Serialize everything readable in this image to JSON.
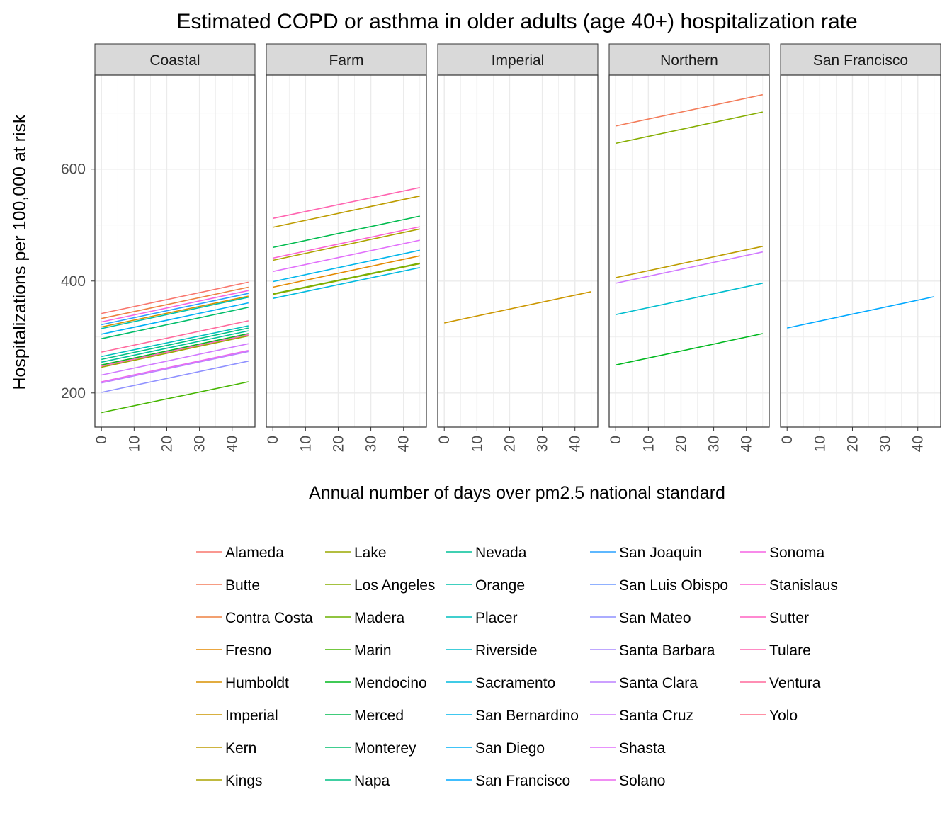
{
  "chart_data": {
    "type": "line",
    "title": "Estimated COPD or asthma in older adults (age 40+) hospitalization rate",
    "xlabel": "Annual number of days over pm2.5 national standard",
    "ylabel": "Hospitalizations per 100,000 at risk",
    "xlim": [
      -2,
      47
    ],
    "ylim": [
      139,
      768
    ],
    "x_ticks": [
      0,
      10,
      20,
      30,
      40
    ],
    "y_ticks": [
      200,
      400,
      600
    ],
    "grid": true,
    "legend_position": "bottom",
    "panels": [
      {
        "name": "Coastal",
        "series": [
          {
            "name": "Alameda",
            "x": [
              0,
              45
            ],
            "y": [
              342,
              398
            ]
          },
          {
            "name": "Contra Costa",
            "x": [
              0,
              45
            ],
            "y": [
              333,
              389
            ]
          },
          {
            "name": "Sonoma",
            "x": [
              0,
              45
            ],
            "y": [
              327,
              383
            ]
          },
          {
            "name": "San Joaquin",
            "x": [
              0,
              45
            ],
            "y": [
              322,
              378
            ]
          },
          {
            "name": "Humboldt",
            "x": [
              0,
              45
            ],
            "y": [
              318,
              373
            ]
          },
          {
            "name": "Orange",
            "x": [
              0,
              45
            ],
            "y": [
              315,
              371
            ]
          },
          {
            "name": "San Diego",
            "x": [
              0,
              45
            ],
            "y": [
              305,
              361
            ]
          },
          {
            "name": "Monterey",
            "x": [
              0,
              45
            ],
            "y": [
              297,
              353
            ]
          },
          {
            "name": "Ventura",
            "x": [
              0,
              45
            ],
            "y": [
              273,
              329
            ]
          },
          {
            "name": "Placer",
            "x": [
              0,
              45
            ],
            "y": [
              265,
              320
            ]
          },
          {
            "name": "Napa",
            "x": [
              0,
              45
            ],
            "y": [
              260,
              316
            ]
          },
          {
            "name": "Nevada",
            "x": [
              0,
              45
            ],
            "y": [
              255,
              311
            ]
          },
          {
            "name": "Mendocino",
            "x": [
              0,
              45
            ],
            "y": [
              250,
              306
            ]
          },
          {
            "name": "Sutter",
            "x": [
              0,
              45
            ],
            "y": [
              248,
              304
            ]
          },
          {
            "name": "Lake",
            "x": [
              0,
              45
            ],
            "y": [
              246,
              302
            ]
          },
          {
            "name": "Santa Cruz",
            "x": [
              0,
              45
            ],
            "y": [
              232,
              288
            ]
          },
          {
            "name": "Solano",
            "x": [
              0,
              45
            ],
            "y": [
              220,
              276
            ]
          },
          {
            "name": "Santa Clara",
            "x": [
              0,
              45
            ],
            "y": [
              218,
              274
            ]
          },
          {
            "name": "San Mateo",
            "x": [
              0,
              45
            ],
            "y": [
              201,
              257
            ]
          },
          {
            "name": "Marin",
            "x": [
              0,
              45
            ],
            "y": [
              165,
              220
            ]
          }
        ]
      },
      {
        "name": "Farm",
        "series": [
          {
            "name": "Tulare",
            "x": [
              0,
              45
            ],
            "y": [
              512,
              567
            ]
          },
          {
            "name": "Kern",
            "x": [
              0,
              45
            ],
            "y": [
              496,
              552
            ]
          },
          {
            "name": "Merced",
            "x": [
              0,
              45
            ],
            "y": [
              460,
              516
            ]
          },
          {
            "name": "Stanislaus",
            "x": [
              0,
              45
            ],
            "y": [
              441,
              497
            ]
          },
          {
            "name": "Kings",
            "x": [
              0,
              45
            ],
            "y": [
              437,
              493
            ]
          },
          {
            "name": "Shasta",
            "x": [
              0,
              45
            ],
            "y": [
              417,
              473
            ]
          },
          {
            "name": "San Bernardino",
            "x": [
              0,
              45
            ],
            "y": [
              399,
              455
            ]
          },
          {
            "name": "Fresno",
            "x": [
              0,
              45
            ],
            "y": [
              389,
              445
            ]
          },
          {
            "name": "Madera",
            "x": [
              0,
              45
            ],
            "y": [
              377,
              432
            ]
          },
          {
            "name": "Los Angeles",
            "x": [
              0,
              45
            ],
            "y": [
              376,
              431
            ]
          },
          {
            "name": "Sacramento",
            "x": [
              0,
              45
            ],
            "y": [
              369,
              424
            ]
          }
        ]
      },
      {
        "name": "Imperial",
        "series": [
          {
            "name": "Imperial",
            "x": [
              0,
              45
            ],
            "y": [
              325,
              381
            ]
          }
        ]
      },
      {
        "name": "Northern",
        "series": [
          {
            "name": "Butte",
            "x": [
              0,
              45
            ],
            "y": [
              677,
              733
            ]
          },
          {
            "name": "Los Angeles",
            "x": [
              0,
              45
            ],
            "y": [
              646,
              702
            ]
          },
          {
            "name": "Kern",
            "x": [
              0,
              45
            ],
            "y": [
              406,
              462
            ]
          },
          {
            "name": "Santa Cruz",
            "x": [
              0,
              45
            ],
            "y": [
              396,
              452
            ]
          },
          {
            "name": "Riverside",
            "x": [
              0,
              45
            ],
            "y": [
              340,
              396
            ]
          },
          {
            "name": "Mendocino",
            "x": [
              0,
              45
            ],
            "y": [
              250,
              306
            ]
          }
        ]
      },
      {
        "name": "San Francisco",
        "series": [
          {
            "name": "San Francisco",
            "x": [
              0,
              45
            ],
            "y": [
              316,
              372
            ]
          }
        ]
      }
    ],
    "legend": {
      "columns": [
        [
          "Alameda",
          "Butte",
          "Contra Costa",
          "Fresno",
          "Humboldt",
          "Imperial",
          "Kern",
          "Kings"
        ],
        [
          "Lake",
          "Los Angeles",
          "Madera",
          "Marin",
          "Mendocino",
          "Merced",
          "Monterey",
          "Napa"
        ],
        [
          "Nevada",
          "Orange",
          "Placer",
          "Riverside",
          "Sacramento",
          "San Bernardino",
          "San Diego",
          "San Francisco"
        ],
        [
          "San Joaquin",
          "San Luis Obispo",
          "San Mateo",
          "Santa Barbara",
          "Santa Clara",
          "Santa Cruz",
          "Shasta",
          "Solano"
        ],
        [
          "Sonoma",
          "Stanislaus",
          "Sutter",
          "Tulare",
          "Ventura",
          "Yolo"
        ]
      ]
    },
    "colors": {
      "Alameda": "#F8766D",
      "Butte": "#F37B59",
      "Contra Costa": "#ED8141",
      "Fresno": "#E38900",
      "Humboldt": "#D89000",
      "Imperial": "#CB9600",
      "Kern": "#BD9C00",
      "Kings": "#ACA300",
      "Lake": "#9AA800",
      "Los Angeles": "#85AD00",
      "Madera": "#6BB100",
      "Marin": "#45B500",
      "Mendocino": "#00B81F",
      "Merced": "#00BB4E",
      "Monterey": "#00BD6B",
      "Napa": "#00BF83",
      "Nevada": "#00C098",
      "Orange": "#00C0AB",
      "Placer": "#00BFBD",
      "Riverside": "#00BDCE",
      "Sacramento": "#00BADE",
      "San Bernardino": "#00B6EB",
      "San Diego": "#00B0F6",
      "San Francisco": "#00A8FF",
      "San Joaquin": "#28A0FF",
      "San Luis Obispo": "#6C97FF",
      "San Mateo": "#8F91FF",
      "Santa Barbara": "#A88AFF",
      "Santa Clara": "#BC81FF",
      "Santa Cruz": "#D079FF",
      "Shasta": "#E16FFB",
      "Solano": "#EC69EF",
      "Sonoma": "#F564E3",
      "Stanislaus": "#FB62D4",
      "Sutter": "#FF62C2",
      "Tulare": "#FF64B0",
      "Ventura": "#FF689C",
      "Yolo": "#FF6C86"
    }
  }
}
